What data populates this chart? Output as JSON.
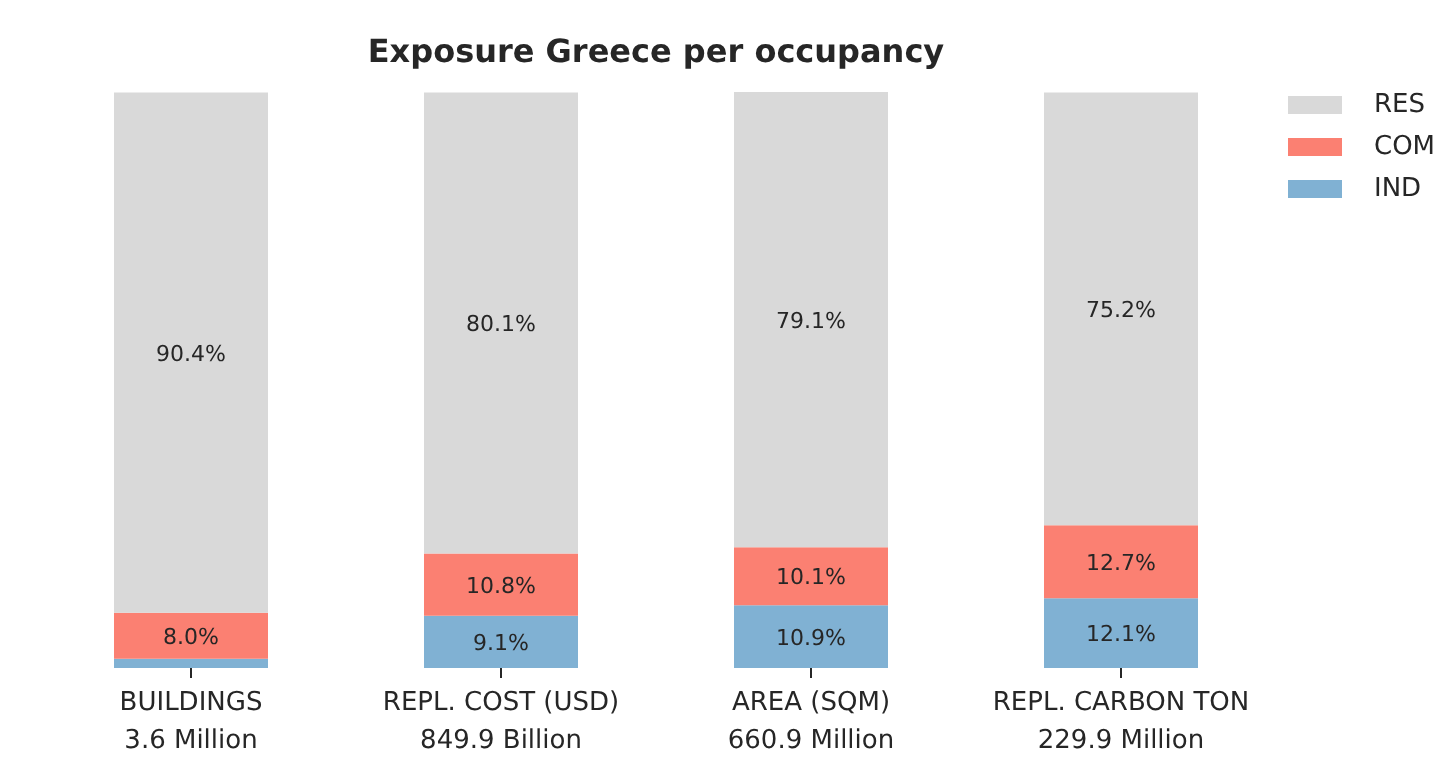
{
  "chart_data": {
    "type": "bar",
    "title": "Exposure Greece per occupancy",
    "stacked": true,
    "legend": "top right",
    "categories": [
      "BUILDINGS\n3.6 Million",
      "REPL. COST (USD)\n849.9 Billion",
      "AREA (SQM)\n660.9 Million",
      "REPL. CARBON TON\n229.9 Million"
    ],
    "series": [
      {
        "name": "IND",
        "color": "#80b1d3",
        "values": [
          1.6,
          9.1,
          10.9,
          12.1
        ],
        "value_labels": [
          null,
          "9.1%",
          "10.9%",
          "12.1%"
        ]
      },
      {
        "name": "COM",
        "color": "#fb8072",
        "values": [
          8.0,
          10.8,
          10.1,
          12.7
        ],
        "value_labels": [
          "8.0%",
          "10.8%",
          "10.1%",
          "12.7%"
        ]
      },
      {
        "name": "RES",
        "color": "#d9d9d9",
        "values": [
          90.4,
          80.1,
          79.1,
          75.2
        ],
        "value_labels": [
          "90.4%",
          "80.1%",
          "79.1%",
          "75.2%"
        ]
      }
    ]
  }
}
